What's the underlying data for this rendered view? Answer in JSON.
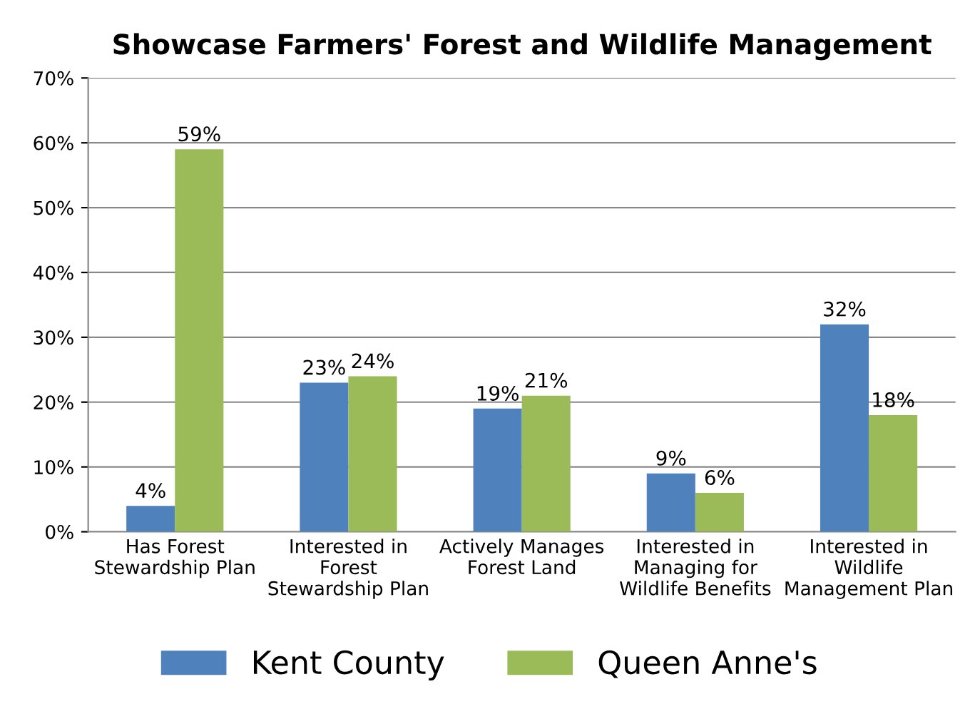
{
  "chart_data": {
    "type": "bar",
    "title": "Showcase Farmers' Forest and Wildlife Management",
    "categories": [
      "Has Forest\nStewardship Plan",
      "Interested in\nForest\nStewardship Plan",
      "Actively Manages\nForest Land",
      "Interested in\nManaging for\nWildlife Benefits",
      "Interested in\nWildlife\nManagement Plan"
    ],
    "series": [
      {
        "name": "Kent County",
        "color": "#4f81bd",
        "values": [
          4,
          23,
          19,
          9,
          32
        ],
        "value_labels": [
          "4%",
          "23%",
          "19%",
          "9%",
          "32%"
        ]
      },
      {
        "name": "Queen Anne's",
        "color": "#9bbb59",
        "values": [
          59,
          24,
          21,
          6,
          18
        ],
        "value_labels": [
          "59%",
          "24%",
          "21%",
          "6%",
          "18%"
        ]
      }
    ],
    "ylim": [
      0,
      70
    ],
    "yticks": [
      {
        "value": 0,
        "label": "0%"
      },
      {
        "value": 10,
        "label": "10%"
      },
      {
        "value": 20,
        "label": "20%"
      },
      {
        "value": 30,
        "label": "30%"
      },
      {
        "value": 40,
        "label": "40%"
      },
      {
        "value": 50,
        "label": "50%"
      },
      {
        "value": 60,
        "label": "60%"
      },
      {
        "value": 70,
        "label": "70%"
      }
    ],
    "grid": "y",
    "legend": "bottom"
  }
}
